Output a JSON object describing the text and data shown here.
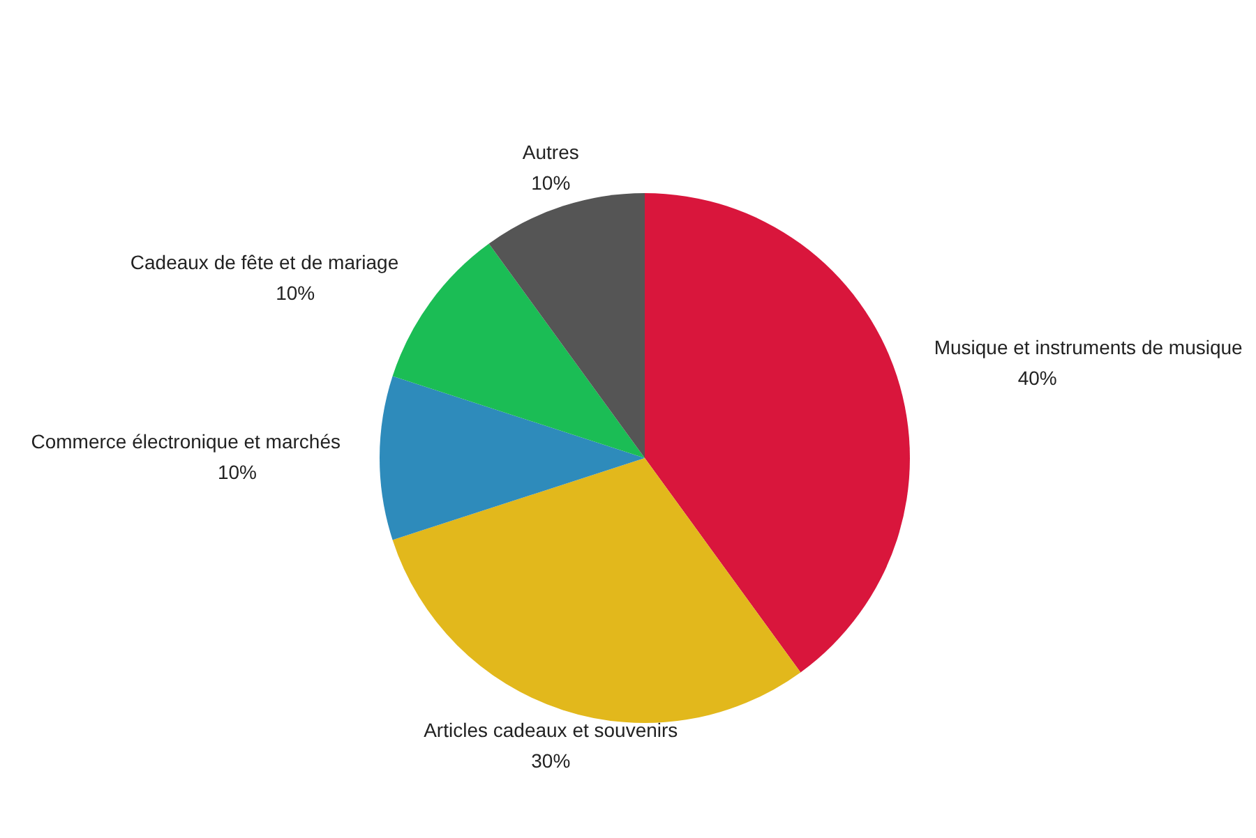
{
  "chart_data": {
    "type": "pie",
    "categories": [
      "Musique et instruments de musique",
      "Articles cadeaux et souvenirs",
      "Commerce électronique et marchés",
      "Cadeaux de fête et de mariage",
      "Autres"
    ],
    "values": [
      40,
      30,
      10,
      10,
      10
    ],
    "colors": [
      "#d9163c",
      "#e2b81c",
      "#2e8bbb",
      "#1bbd55",
      "#555555"
    ],
    "value_labels": [
      "40%",
      "30%",
      "10%",
      "10%",
      "10%"
    ],
    "legend": false
  }
}
